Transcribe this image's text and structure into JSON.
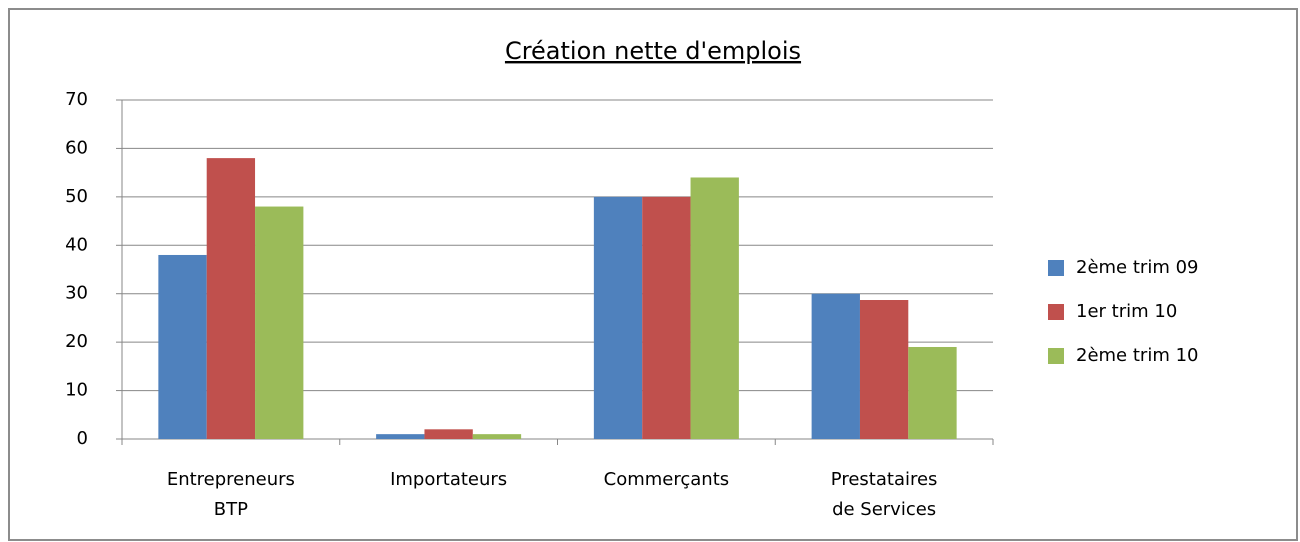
{
  "chart_data": {
    "type": "bar",
    "title": "Création nette d'emplois",
    "categories": [
      "Entrepreneurs\nBTP",
      "Importateurs",
      "Commerçants",
      "Prestataires\nde Services"
    ],
    "series": [
      {
        "name": "2ème trim 09",
        "color": "#4f81bd",
        "values": [
          38,
          1,
          50,
          30
        ]
      },
      {
        "name": "1er trim 10",
        "color": "#c0504d",
        "values": [
          58,
          2,
          50,
          28.7
        ]
      },
      {
        "name": "2ème trim 10",
        "color": "#9bbb59",
        "values": [
          48,
          1,
          54,
          19
        ]
      }
    ],
    "ylim": [
      0,
      70
    ],
    "yticks": [
      0,
      10,
      20,
      30,
      40,
      50,
      60,
      70
    ],
    "grid": true,
    "legend": "right"
  }
}
